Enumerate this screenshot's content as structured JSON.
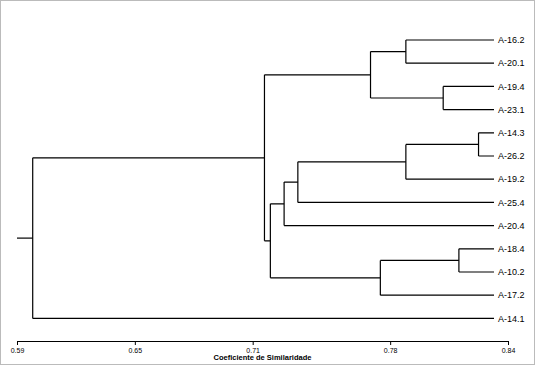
{
  "chart_data": {
    "type": "dendrogram",
    "x_label": "Coeficiente de Similaridade",
    "xlim": [
      0.59,
      0.84
    ],
    "xticks": [
      0.59,
      0.65,
      0.71,
      0.78,
      0.84
    ],
    "tree": {
      "height": 0.598,
      "children": [
        {
          "height": 0.716,
          "children": [
            {
              "height": 0.77,
              "children": [
                {
                  "height": 0.788,
                  "children": [
                    {
                      "label": "A-16.2"
                    },
                    {
                      "label": "A-20.1"
                    }
                  ]
                },
                {
                  "height": 0.807,
                  "children": [
                    {
                      "label": "A-19.4"
                    },
                    {
                      "label": "A-23.1"
                    }
                  ]
                }
              ]
            },
            {
              "height": 0.719,
              "children": [
                {
                  "height": 0.726,
                  "children": [
                    {
                      "height": 0.733,
                      "children": [
                        {
                          "height": 0.788,
                          "children": [
                            {
                              "height": 0.825,
                              "children": [
                                {
                                  "label": "A-14.3"
                                },
                                {
                                  "label": "A-26.2"
                                }
                              ]
                            },
                            {
                              "label": "A-19.2"
                            }
                          ]
                        },
                        {
                          "label": "A-25.4"
                        }
                      ]
                    },
                    {
                      "label": "A-20.4"
                    }
                  ]
                },
                {
                  "height": 0.775,
                  "children": [
                    {
                      "height": 0.815,
                      "children": [
                        {
                          "label": "A-18.4"
                        },
                        {
                          "label": "A-10.2"
                        }
                      ]
                    },
                    {
                      "label": "A-17.2"
                    }
                  ]
                }
              ]
            }
          ]
        },
        {
          "label": "A-14.1"
        }
      ]
    }
  }
}
